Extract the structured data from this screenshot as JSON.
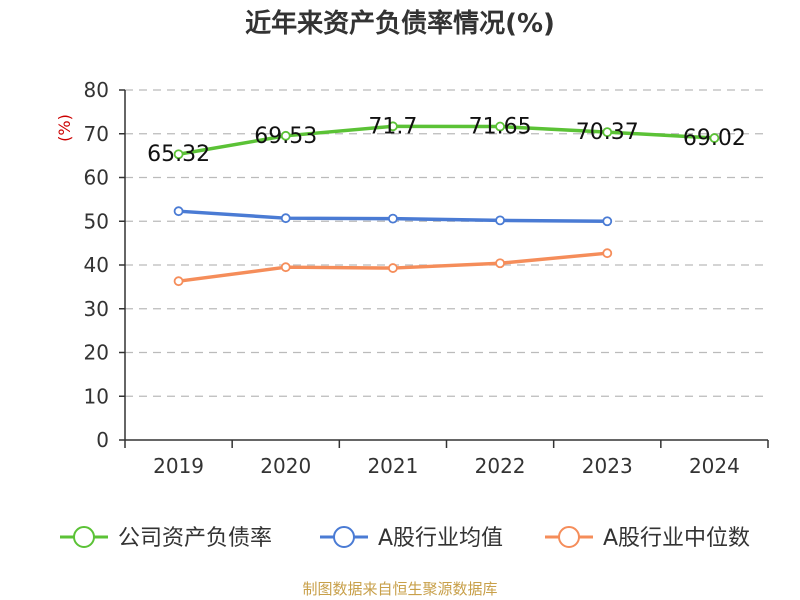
{
  "chart_data": {
    "type": "line",
    "title": "近年来资产负债率情况(%)",
    "ylabel": "(%)",
    "xlabel": "",
    "ylim": [
      0,
      80
    ],
    "yticks": [
      0,
      10,
      20,
      30,
      40,
      50,
      60,
      70,
      80
    ],
    "categories": [
      "2019",
      "2020",
      "2021",
      "2022",
      "2023",
      "2024"
    ],
    "grid": true,
    "legend_position": "bottom",
    "series": [
      {
        "name": "公司资产负债率",
        "color": "#5bc236",
        "values": [
          65.32,
          69.53,
          71.7,
          71.65,
          70.37,
          69.02
        ],
        "data_labels": [
          "65.32",
          "69.53",
          "71.7",
          "71.65",
          "70.37",
          "69.02"
        ]
      },
      {
        "name": "A股行业均值",
        "color": "#4a7bd4",
        "values": [
          52.3,
          50.7,
          50.6,
          50.2,
          50.0,
          null
        ]
      },
      {
        "name": "A股行业中位数",
        "color": "#f58d5a",
        "values": [
          36.3,
          39.5,
          39.3,
          40.4,
          42.7,
          null
        ]
      }
    ]
  },
  "source": "制图数据来自恒生聚源数据库"
}
